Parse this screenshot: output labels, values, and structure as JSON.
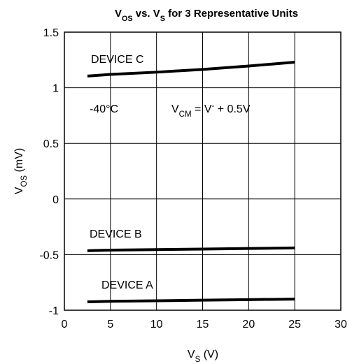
{
  "chart_data": {
    "type": "line",
    "title": [
      {
        "text": "V"
      },
      {
        "text": "OS",
        "shift": "sub"
      },
      {
        "text": " vs. V"
      },
      {
        "text": "S",
        "shift": "sub"
      },
      {
        "text": " for 3 Representative Units"
      }
    ],
    "xlabel": [
      {
        "text": "V"
      },
      {
        "text": "S",
        "shift": "sub"
      },
      {
        "text": " (V)"
      }
    ],
    "ylabel": [
      {
        "text": "V"
      },
      {
        "text": "OS",
        "shift": "sub"
      },
      {
        "text": " (mV)"
      }
    ],
    "annotations": [
      [
        {
          "text": "-40°C"
        }
      ],
      [
        {
          "text": "V"
        },
        {
          "text": "CM",
          "shift": "sub"
        },
        {
          "text": " = V"
        },
        {
          "text": "-",
          "shift": "super"
        },
        {
          "text": " + 0.5V"
        }
      ]
    ],
    "x": [
      2.5,
      5,
      10,
      15,
      20,
      25
    ],
    "series": [
      {
        "name": "DEVICE C",
        "color": "#000000",
        "values": [
          1.105,
          1.12,
          1.14,
          1.165,
          1.195,
          1.23
        ]
      },
      {
        "name": "DEVICE B",
        "color": "#000000",
        "values": [
          -0.465,
          -0.46,
          -0.455,
          -0.45,
          -0.445,
          -0.44
        ]
      },
      {
        "name": "DEVICE A",
        "color": "#000000",
        "values": [
          -0.925,
          -0.92,
          -0.915,
          -0.91,
          -0.905,
          -0.9
        ]
      }
    ],
    "xlim": [
      0,
      30
    ],
    "xticks": [
      0,
      5,
      10,
      15,
      20,
      25,
      30
    ],
    "ylim": [
      -1,
      1.5
    ],
    "yticks": [
      -1,
      {
        "value": -0.5,
        "label": "-0.5"
      },
      0,
      {
        "value": 0.5,
        "label": "0.5"
      },
      1,
      {
        "value": 1.5,
        "label": "1.5"
      }
    ],
    "grid": true
  }
}
